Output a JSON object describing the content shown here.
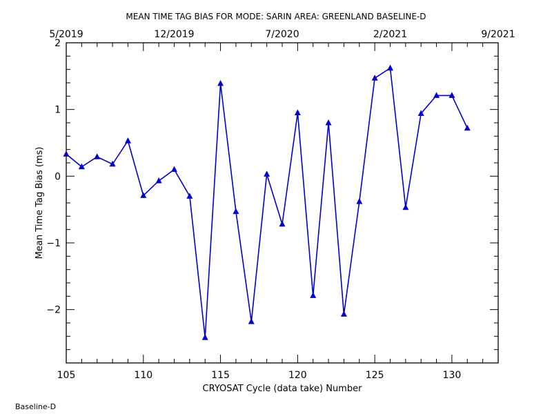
{
  "chart_data": {
    "type": "line",
    "title": "MEAN TIME TAG BIAS FOR MODE: SARIN AREA: GREENLAND BASELINE-D",
    "xlabel": "CRYOSAT Cycle (data take) Number",
    "ylabel": "Mean Time Tag Bias (ms)",
    "xlim": [
      105,
      133
    ],
    "ylim": [
      -2.8,
      2
    ],
    "x_ticks": [
      105,
      110,
      115,
      120,
      125,
      130
    ],
    "x_tick_labels": [
      "105",
      "110",
      "115",
      "120",
      "125",
      "130"
    ],
    "y_ticks": [
      -2,
      -1,
      0,
      1,
      2
    ],
    "y_tick_labels": [
      "−2",
      "−1",
      "0",
      "1",
      "2"
    ],
    "top_axis": {
      "ticks": [
        105,
        112,
        119,
        126,
        133
      ],
      "labels": [
        "5/2019",
        "12/2019",
        "7/2020",
        "2/2021",
        "9/2021"
      ]
    },
    "series": [
      {
        "color": "#0000cc",
        "marker": "triangle",
        "x": [
          105,
          106,
          107,
          108,
          109,
          110,
          111,
          112,
          113,
          114,
          115,
          116,
          117,
          118,
          119,
          120,
          121,
          122,
          123,
          124,
          125,
          126,
          127,
          128,
          129,
          130,
          131
        ],
        "y": [
          0.33,
          0.14,
          0.29,
          0.18,
          0.53,
          -0.29,
          -0.07,
          0.1,
          -0.3,
          -2.42,
          1.39,
          -0.53,
          -2.18,
          0.03,
          -0.72,
          0.95,
          -1.79,
          0.8,
          -2.07,
          -0.38,
          1.47,
          1.62,
          -0.47,
          0.94,
          1.21,
          1.21,
          0.72
        ]
      }
    ],
    "grid": false,
    "legend": "none"
  },
  "footer_label": "Baseline-D"
}
